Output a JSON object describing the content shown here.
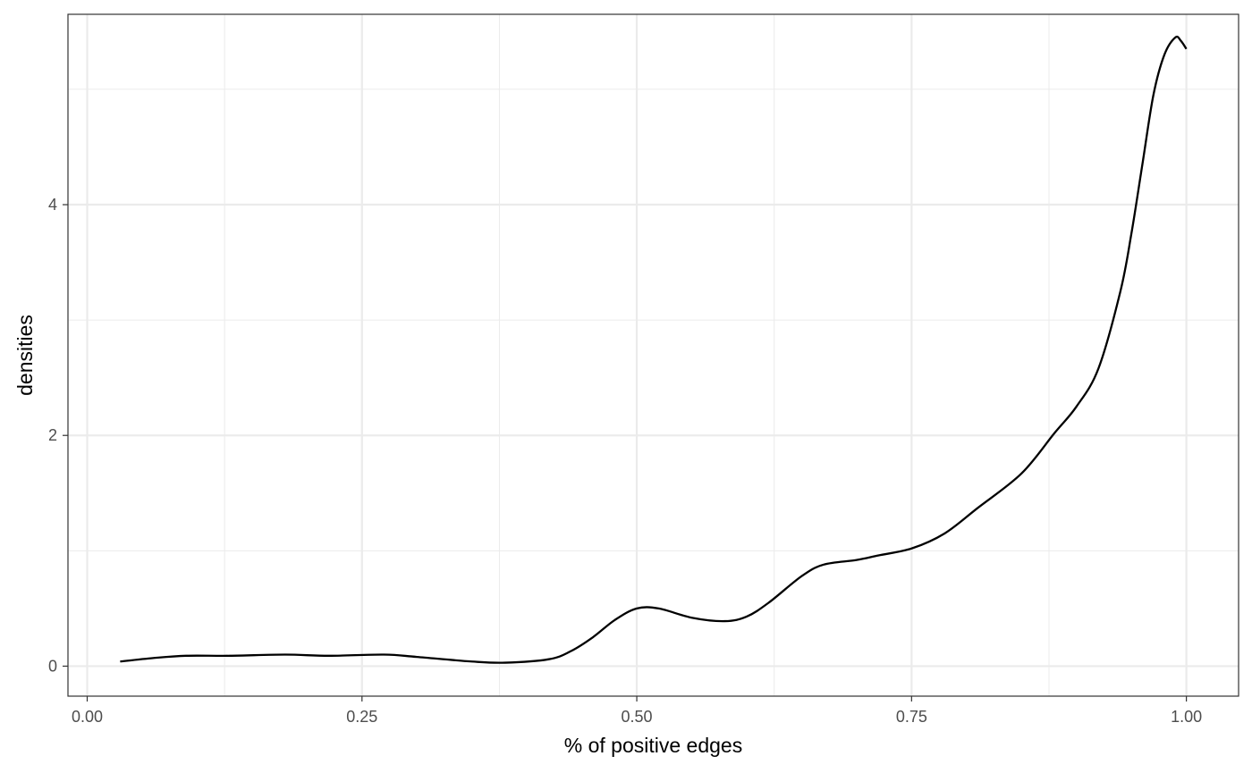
{
  "chart_data": {
    "type": "line",
    "title": "",
    "xlabel": "% of positive edges",
    "ylabel": "densities",
    "xlim": [
      -0.0175,
      1.0475
    ],
    "ylim": [
      -0.26,
      5.65
    ],
    "x_ticks": [
      0.0,
      0.25,
      0.5,
      0.75,
      1.0
    ],
    "x_tick_labels": [
      "0.00",
      "0.25",
      "0.50",
      "0.75",
      "1.00"
    ],
    "y_ticks": [
      0,
      2,
      4
    ],
    "y_tick_labels": [
      "0",
      "2",
      "4"
    ],
    "x_minor_ticks": [
      0.125,
      0.375,
      0.625,
      0.875
    ],
    "y_minor_ticks": [
      1,
      3,
      5
    ],
    "grid": true,
    "legend": "none",
    "series": [
      {
        "color": "#000000",
        "x": [
          0.03,
          0.06,
          0.09,
          0.13,
          0.18,
          0.22,
          0.27,
          0.3,
          0.35,
          0.38,
          0.42,
          0.44,
          0.46,
          0.48,
          0.5,
          0.52,
          0.55,
          0.58,
          0.6,
          0.62,
          0.65,
          0.67,
          0.7,
          0.72,
          0.75,
          0.78,
          0.81,
          0.85,
          0.88,
          0.9,
          0.92,
          0.94,
          0.95,
          0.96,
          0.97,
          0.98,
          0.99,
          0.995,
          1.0
        ],
        "y": [
          0.04,
          0.07,
          0.09,
          0.09,
          0.1,
          0.09,
          0.1,
          0.08,
          0.04,
          0.03,
          0.06,
          0.13,
          0.25,
          0.4,
          0.5,
          0.5,
          0.42,
          0.39,
          0.43,
          0.55,
          0.78,
          0.88,
          0.92,
          0.96,
          1.02,
          1.15,
          1.37,
          1.67,
          2.02,
          2.25,
          2.58,
          3.25,
          3.75,
          4.35,
          4.95,
          5.3,
          5.45,
          5.42,
          5.35
        ]
      }
    ]
  }
}
